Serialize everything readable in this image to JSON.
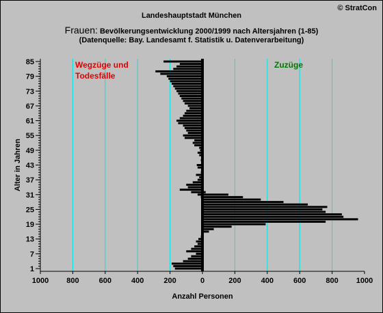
{
  "copyright": "© StratCon",
  "title": {
    "line1": "Landeshauptstadt München",
    "line2_big": "Frauen:",
    "line2_rest": "Bevölkerungsentwicklung 2000/1999   nach Altersjahren (1-85)",
    "line3": "(Datenquelle: Bay. Landesamt f. Statistik u. Datenverarbeitung)"
  },
  "colors": {
    "background": "#c0c0c0",
    "bars": "#000000",
    "gridlines": "#00e5e5",
    "left_label": "#e00000",
    "right_label": "#007700"
  },
  "chart_data": {
    "type": "bar",
    "orientation": "horizontal",
    "xlabel": "Anzahl Personen",
    "ylabel": "Alter in Jahren",
    "xlim": [
      -1000,
      1000
    ],
    "ylim": [
      1,
      85
    ],
    "grid": "vertical",
    "x_tick_labels": [
      "1000",
      "800",
      "600",
      "400",
      "200",
      "0",
      "200",
      "400",
      "600",
      "800",
      "1000"
    ],
    "y_tick_labels": [
      "1",
      "7",
      "13",
      "19",
      "25",
      "31",
      "37",
      "43",
      "49",
      "55",
      "61",
      "67",
      "73",
      "79",
      "85"
    ],
    "annotations": [
      {
        "text": "Wegzüge und\nTodesfälle",
        "side": "left"
      },
      {
        "text": "Zuzüge",
        "side": "right"
      }
    ],
    "ages": [
      1,
      2,
      3,
      4,
      5,
      6,
      7,
      8,
      9,
      10,
      11,
      12,
      13,
      14,
      15,
      16,
      17,
      18,
      19,
      20,
      21,
      22,
      23,
      24,
      25,
      26,
      27,
      28,
      29,
      30,
      31,
      32,
      33,
      34,
      35,
      36,
      37,
      38,
      39,
      40,
      41,
      42,
      43,
      44,
      45,
      46,
      47,
      48,
      49,
      50,
      51,
      52,
      53,
      54,
      55,
      56,
      57,
      58,
      59,
      60,
      61,
      62,
      63,
      64,
      65,
      66,
      67,
      68,
      69,
      70,
      71,
      72,
      73,
      74,
      75,
      76,
      77,
      78,
      79,
      80,
      81,
      82,
      83,
      84,
      85
    ],
    "series": [
      {
        "name": "Wegzüge und Todesfälle",
        "values": [
          -170,
          -180,
          -190,
          -120,
          -90,
          -70,
          -40,
          -100,
          -70,
          -50,
          -30,
          -40,
          -25,
          -10,
          -5,
          -5,
          -5,
          -5,
          -5,
          -5,
          -5,
          -5,
          -5,
          -5,
          -5,
          -5,
          -5,
          -5,
          -5,
          -10,
          -30,
          -70,
          -140,
          -90,
          -100,
          -60,
          -30,
          -20,
          -40,
          -10,
          -5,
          -30,
          -35,
          -5,
          -10,
          -5,
          -20,
          -30,
          -15,
          -20,
          -50,
          -60,
          -50,
          -110,
          -120,
          -90,
          -100,
          -110,
          -120,
          -150,
          -160,
          -140,
          -120,
          -110,
          -100,
          -80,
          -90,
          -110,
          -120,
          -130,
          -140,
          -150,
          -160,
          -170,
          -180,
          -190,
          -200,
          -210,
          -220,
          -260,
          -290,
          -180,
          -160,
          -140,
          -240
        ]
      },
      {
        "name": "Zuzüge",
        "values": [
          0,
          0,
          0,
          0,
          0,
          0,
          0,
          0,
          0,
          0,
          0,
          0,
          0,
          0,
          0,
          40,
          70,
          180,
          390,
          760,
          960,
          870,
          860,
          760,
          740,
          770,
          650,
          500,
          360,
          250,
          160,
          20,
          0,
          0,
          0,
          0,
          0,
          0,
          0,
          0,
          0,
          0,
          0,
          0,
          0,
          0,
          0,
          0,
          0,
          0,
          0,
          0,
          0,
          0,
          0,
          0,
          0,
          0,
          0,
          0,
          0,
          0,
          0,
          0,
          0,
          0,
          0,
          0,
          0,
          0,
          0,
          0,
          0,
          0,
          0,
          0,
          0,
          0,
          0,
          0,
          0,
          0,
          0,
          0,
          0
        ]
      }
    ]
  }
}
